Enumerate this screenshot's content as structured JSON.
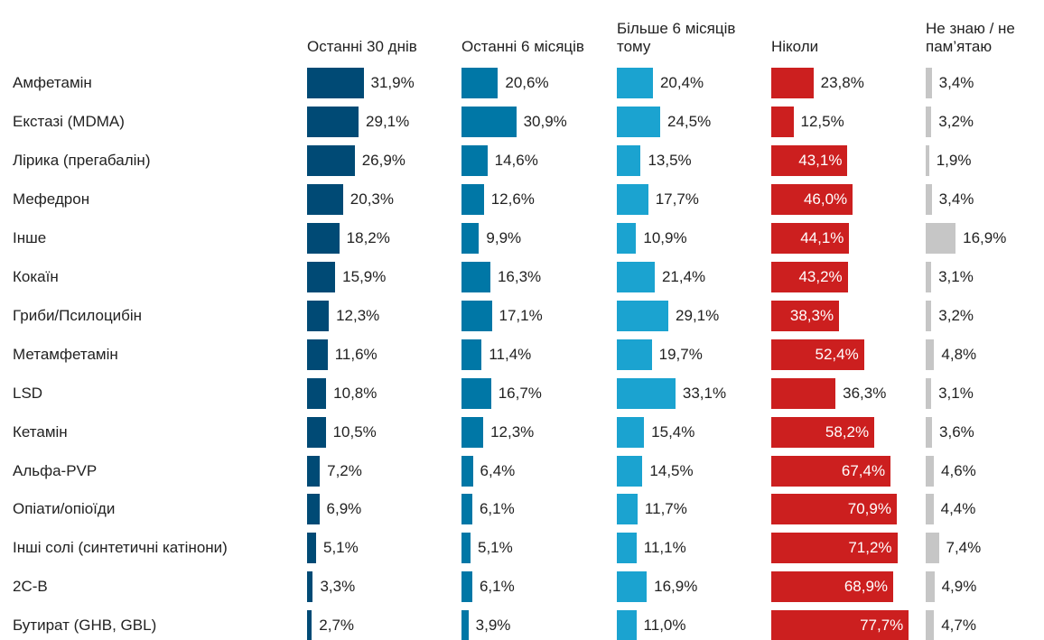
{
  "chart_data": {
    "type": "bar",
    "categories": [
      "Амфетамін",
      "Екстазі (MDMA)",
      "Лірика (прегабалін)",
      "Мефедрон",
      "Інше",
      "Кокаїн",
      "Гриби/Псилоцибін",
      "Метамфетамін",
      "LSD",
      "Кетамін",
      "Альфа-PVP",
      "Опіати/опіоїди",
      "Інші солі (синтетичні катінони)",
      "2C-B",
      "Бутират (GHB, GBL)"
    ],
    "series": [
      {
        "name": "Останні 30 днів",
        "color": "#004a75",
        "values": [
          31.9,
          29.1,
          26.9,
          20.3,
          18.2,
          15.9,
          12.3,
          11.6,
          10.8,
          10.5,
          7.2,
          6.9,
          5.1,
          3.3,
          2.7
        ],
        "value_labels": [
          "31,9%",
          "29,1%",
          "26,9%",
          "20,3%",
          "18,2%",
          "15,9%",
          "12,3%",
          "11,6%",
          "10,8%",
          "10,5%",
          "7,2%",
          "6,9%",
          "5,1%",
          "3,3%",
          "2,7%"
        ]
      },
      {
        "name": "Останні 6 місяців",
        "color": "#0077a6",
        "values": [
          20.6,
          30.9,
          14.6,
          12.6,
          9.9,
          16.3,
          17.1,
          11.4,
          16.7,
          12.3,
          6.4,
          6.1,
          5.1,
          6.1,
          3.9
        ],
        "value_labels": [
          "20,6%",
          "30,9%",
          "14,6%",
          "12,6%",
          "9,9%",
          "16,3%",
          "17,1%",
          "11,4%",
          "16,7%",
          "12,3%",
          "6,4%",
          "6,1%",
          "5,1%",
          "6,1%",
          "3,9%"
        ]
      },
      {
        "name": "Більше 6 місяців тому",
        "color": "#1ba3d0",
        "values": [
          20.4,
          24.5,
          13.5,
          17.7,
          10.9,
          21.4,
          29.1,
          19.7,
          33.1,
          15.4,
          14.5,
          11.7,
          11.1,
          16.9,
          11.0
        ],
        "value_labels": [
          "20,4%",
          "24,5%",
          "13,5%",
          "17,7%",
          "10,9%",
          "21,4%",
          "29,1%",
          "19,7%",
          "33,1%",
          "15,4%",
          "14,5%",
          "11,7%",
          "11,1%",
          "16,9%",
          "11,0%"
        ]
      },
      {
        "name": "Ніколи",
        "color": "#cc1f1f",
        "values": [
          23.8,
          12.5,
          43.1,
          46.0,
          44.1,
          43.2,
          38.3,
          52.4,
          36.3,
          58.2,
          67.4,
          70.9,
          71.2,
          68.9,
          77.7
        ],
        "value_labels": [
          "23,8%",
          "12,5%",
          "43,1%",
          "46,0%",
          "44,1%",
          "43,2%",
          "38,3%",
          "52,4%",
          "36,3%",
          "58,2%",
          "67,4%",
          "70,9%",
          "71,2%",
          "68,9%",
          "77,7%"
        ]
      },
      {
        "name": "Не знаю / не пам’ятаю",
        "color": "#c6c6c6",
        "values": [
          3.4,
          3.2,
          1.9,
          3.4,
          16.9,
          3.1,
          3.2,
          4.8,
          3.1,
          3.6,
          4.6,
          4.4,
          7.4,
          4.9,
          4.7
        ],
        "value_labels": [
          "3,4%",
          "3,2%",
          "1,9%",
          "3,4%",
          "16,9%",
          "3,1%",
          "3,2%",
          "4,8%",
          "3,1%",
          "3,6%",
          "4,6%",
          "4,4%",
          "7,4%",
          "4,9%",
          "4,7%"
        ]
      }
    ]
  }
}
